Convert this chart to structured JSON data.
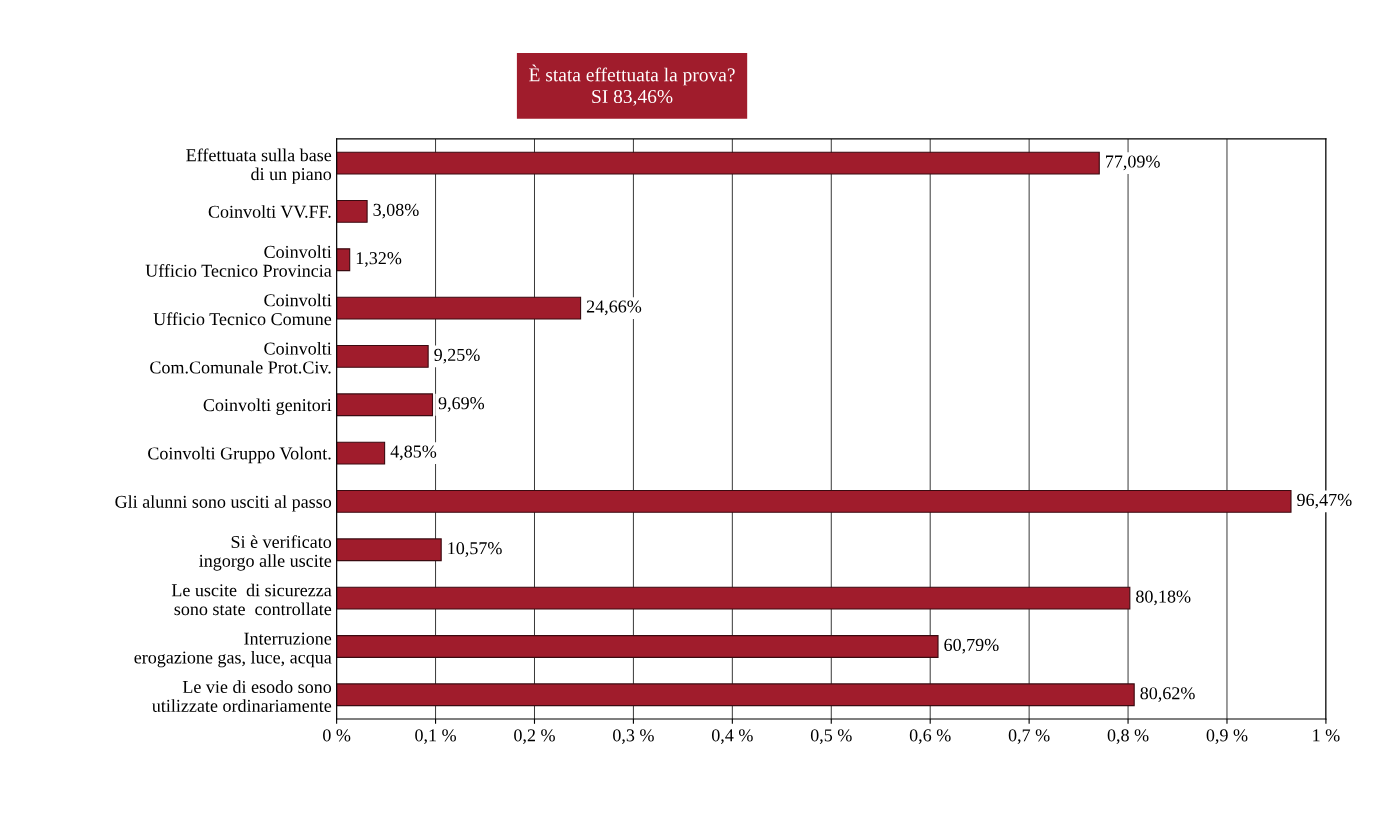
{
  "chart_data": {
    "type": "bar",
    "orientation": "horizontal",
    "title": "È stata effettuata la prova?",
    "subtitle": "SI 83,46%",
    "categories": [
      "Effettuata sulla base\ndi un piano",
      "Coinvolti VV.FF.",
      "Coinvolti\nUfficio Tecnico Provincia",
      "Coinvolti\nUfficio Tecnico Comune",
      "Coinvolti\nCom.Comunale Prot.Civ.",
      "Coinvolti genitori",
      "Coinvolti Gruppo Volont.",
      "Gli alunni sono usciti al passo",
      "Si è verificato\ningorgo alle uscite",
      "Le uscite  di sicurezza\nsono state  controllate",
      "Interruzione\nerogazione gas, luce, acqua",
      "Le vie di esodo sono\nutilizzate ordinariamente"
    ],
    "values": [
      0.7709,
      0.0308,
      0.0132,
      0.2466,
      0.0925,
      0.0969,
      0.0485,
      0.9647,
      0.1057,
      0.8018,
      0.6079,
      0.8062
    ],
    "value_labels": [
      "77,09%",
      "3,08%",
      "1,32%",
      "24,66%",
      "9,25%",
      "9,69%",
      "4,85%",
      "96,47%",
      "10,57%",
      "80,18%",
      "60,79%",
      "80,62%"
    ],
    "color": "#a01c2c",
    "xlim": [
      0,
      1
    ],
    "xticks": [
      {
        "value": 0,
        "label": "0 %"
      },
      {
        "value": 0.1,
        "label": "0,1 %"
      },
      {
        "value": 0.2,
        "label": "0,2 %"
      },
      {
        "value": 0.3,
        "label": "0,3 %"
      },
      {
        "value": 0.4,
        "label": "0,4 %"
      },
      {
        "value": 0.5,
        "label": "0,5 %"
      },
      {
        "value": 0.6,
        "label": "0,6 %"
      },
      {
        "value": 0.7,
        "label": "0,7 %"
      },
      {
        "value": 0.8,
        "label": "0,8 %"
      },
      {
        "value": 0.9,
        "label": "0,9 %"
      },
      {
        "value": 1,
        "label": "1 %"
      }
    ],
    "grid": "x"
  }
}
